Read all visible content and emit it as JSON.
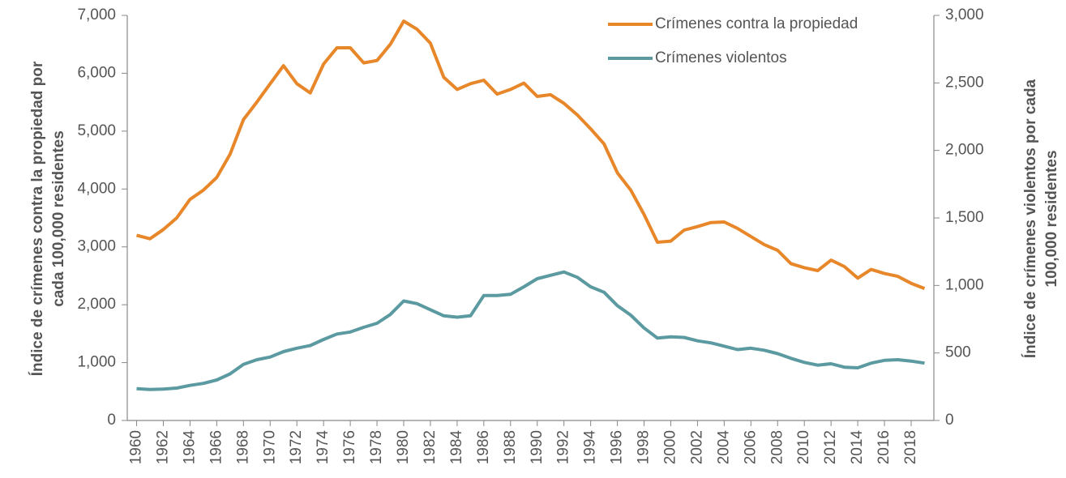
{
  "chart_data": {
    "type": "line",
    "ylabel": [
      "Índice de crímenes contra la propiedad por",
      "cada 100,000 residentes"
    ],
    "y2label": [
      "Índice de crímenes violentos por cada",
      "100,000 residentes"
    ],
    "x": [
      1960,
      1961,
      1962,
      1963,
      1964,
      1965,
      1966,
      1967,
      1968,
      1969,
      1970,
      1971,
      1972,
      1973,
      1974,
      1975,
      1976,
      1977,
      1978,
      1979,
      1980,
      1981,
      1982,
      1983,
      1984,
      1985,
      1986,
      1987,
      1988,
      1989,
      1990,
      1991,
      1992,
      1993,
      1994,
      1995,
      1996,
      1997,
      1998,
      1999,
      2000,
      2001,
      2002,
      2003,
      2004,
      2005,
      2006,
      2007,
      2008,
      2009,
      2010,
      2011,
      2012,
      2013,
      2014,
      2015,
      2016,
      2017,
      2018,
      2019
    ],
    "xlim": [
      1959.3,
      2019.7
    ],
    "xticks": [
      1960,
      1962,
      1964,
      1966,
      1968,
      1970,
      1972,
      1974,
      1976,
      1978,
      1980,
      1982,
      1984,
      1986,
      1988,
      1990,
      1992,
      1994,
      1996,
      1998,
      2000,
      2002,
      2004,
      2006,
      2008,
      2010,
      2012,
      2014,
      2016,
      2018
    ],
    "ylim": [
      0,
      7000
    ],
    "yticks": [
      0,
      {
        "value": 1000,
        "label": "1,000"
      },
      {
        "value": 2000,
        "label": "2,000"
      },
      {
        "value": 3000,
        "label": "3,000"
      },
      {
        "value": 4000,
        "label": "4,000"
      },
      {
        "value": 5000,
        "label": "5,000"
      },
      {
        "value": 6000,
        "label": "6,000"
      },
      {
        "value": 7000,
        "label": "7,000"
      }
    ],
    "y2lim": [
      0,
      3000
    ],
    "y2ticks": [
      0,
      500,
      {
        "value": 1000,
        "label": "1,000"
      },
      {
        "value": 1500,
        "label": "1,500"
      },
      {
        "value": 2000,
        "label": "2,000"
      },
      {
        "value": 2500,
        "label": "2,500"
      },
      {
        "value": 3000,
        "label": "3,000"
      }
    ],
    "legend": "upper right",
    "series": [
      {
        "name": "Crímenes contra la propiedad",
        "color": "#e8872a",
        "axis": "y",
        "values": [
          3200,
          3140,
          3300,
          3500,
          3820,
          3980,
          4200,
          4600,
          5200,
          5500,
          5820,
          6130,
          5820,
          5660,
          6160,
          6440,
          6440,
          6180,
          6220,
          6500,
          6900,
          6760,
          6520,
          5930,
          5720,
          5820,
          5880,
          5640,
          5720,
          5830,
          5600,
          5630,
          5480,
          5280,
          5040,
          4780,
          4280,
          3980,
          3560,
          3080,
          3100,
          3290,
          3350,
          3420,
          3430,
          3320,
          3180,
          3040,
          2940,
          2710,
          2640,
          2590,
          2770,
          2660,
          2460,
          2610,
          2540,
          2490,
          2370,
          2280
        ]
      },
      {
        "name": "Crímenes violentos",
        "color": "#5b9aa0",
        "axis": "y2",
        "values": [
          235,
          230,
          232,
          240,
          260,
          275,
          300,
          345,
          415,
          450,
          470,
          510,
          535,
          555,
          600,
          640,
          655,
          690,
          720,
          785,
          885,
          865,
          820,
          775,
          765,
          775,
          925,
          925,
          935,
          990,
          1050,
          1075,
          1100,
          1060,
          990,
          950,
          850,
          780,
          685,
          610,
          620,
          615,
          590,
          575,
          550,
          525,
          535,
          520,
          495,
          460,
          430,
          410,
          420,
          395,
          390,
          425,
          445,
          450,
          440,
          425
        ]
      }
    ]
  }
}
